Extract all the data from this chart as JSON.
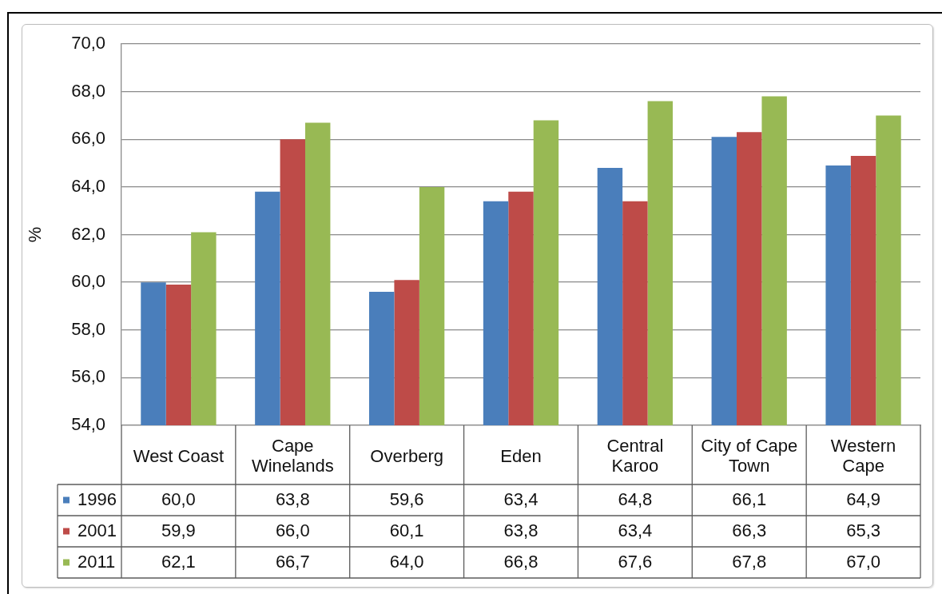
{
  "chart_data": {
    "type": "bar",
    "categories": [
      "West Coast",
      "Cape Winelands",
      "Overberg",
      "Eden",
      "Central Karoo",
      "City of Cape Town",
      "Western Cape"
    ],
    "series": [
      {
        "name": "1996",
        "color": "#4a7ebb",
        "values": [
          60.0,
          63.8,
          59.6,
          63.4,
          64.8,
          66.1,
          64.9
        ],
        "value_labels": [
          "60,0",
          "63,8",
          "59,6",
          "63,4",
          "64,8",
          "66,1",
          "64,9"
        ]
      },
      {
        "name": "2001",
        "color": "#be4b48",
        "values": [
          59.9,
          66.0,
          60.1,
          63.8,
          63.4,
          66.3,
          65.3
        ],
        "value_labels": [
          "59,9",
          "66,0",
          "60,1",
          "63,8",
          "63,4",
          "66,3",
          "65,3"
        ]
      },
      {
        "name": "2011",
        "color": "#98b954",
        "values": [
          62.1,
          66.7,
          64.0,
          66.8,
          67.6,
          67.8,
          67.0
        ],
        "value_labels": [
          "62,1",
          "66,7",
          "64,0",
          "66,8",
          "67,6",
          "67,8",
          "67,0"
        ]
      }
    ],
    "ylabel": "%",
    "ylim": [
      54,
      70
    ],
    "yticks": [
      {
        "value": 54,
        "label": "54,0"
      },
      {
        "value": 56,
        "label": "56,0"
      },
      {
        "value": 58,
        "label": "58,0"
      },
      {
        "value": 60,
        "label": "60,0"
      },
      {
        "value": 62,
        "label": "62,0"
      },
      {
        "value": 64,
        "label": "64,0"
      },
      {
        "value": 66,
        "label": "66,0"
      },
      {
        "value": 68,
        "label": "68,0"
      },
      {
        "value": 70,
        "label": "70,0"
      }
    ],
    "grid": "y",
    "legend": "bottom left"
  }
}
